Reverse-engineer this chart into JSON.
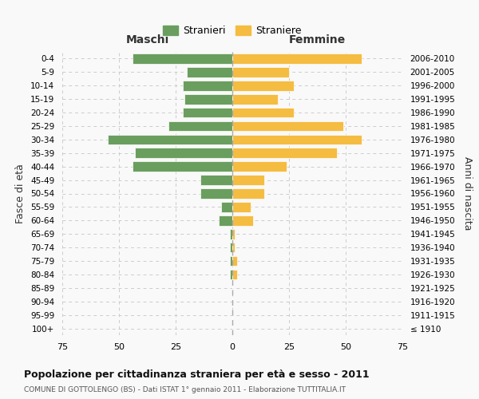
{
  "age_groups": [
    "0-4",
    "5-9",
    "10-14",
    "15-19",
    "20-24",
    "25-29",
    "30-34",
    "35-39",
    "40-44",
    "45-49",
    "50-54",
    "55-59",
    "60-64",
    "65-69",
    "70-74",
    "75-79",
    "80-84",
    "85-89",
    "90-94",
    "95-99",
    "100+"
  ],
  "birth_years": [
    "2006-2010",
    "2001-2005",
    "1996-2000",
    "1991-1995",
    "1986-1990",
    "1981-1985",
    "1976-1980",
    "1971-1975",
    "1966-1970",
    "1961-1965",
    "1956-1960",
    "1951-1955",
    "1946-1950",
    "1941-1945",
    "1936-1940",
    "1931-1935",
    "1926-1930",
    "1921-1925",
    "1916-1920",
    "1911-1915",
    "≤ 1910"
  ],
  "maschi": [
    44,
    20,
    22,
    21,
    22,
    28,
    55,
    43,
    44,
    14,
    14,
    5,
    6,
    1,
    1,
    1,
    1,
    0,
    0,
    0,
    0
  ],
  "femmine": [
    57,
    25,
    27,
    20,
    27,
    49,
    57,
    46,
    24,
    14,
    14,
    8,
    9,
    1,
    1,
    2,
    2,
    0,
    0,
    0,
    0
  ],
  "male_color": "#6a9e5e",
  "female_color": "#f5bc42",
  "background_color": "#f9f9f9",
  "grid_color": "#cccccc",
  "title": "Popolazione per cittadinanza straniera per età e sesso - 2011",
  "subtitle": "COMUNE DI GOTTOLENGO (BS) - Dati ISTAT 1° gennaio 2011 - Elaborazione TUTTITALIA.IT",
  "xlabel_left": "Maschi",
  "xlabel_right": "Femmine",
  "ylabel_left": "Fasce di età",
  "ylabel_right": "Anni di nascita",
  "legend_male": "Stranieri",
  "legend_female": "Straniere",
  "xlim": 75
}
